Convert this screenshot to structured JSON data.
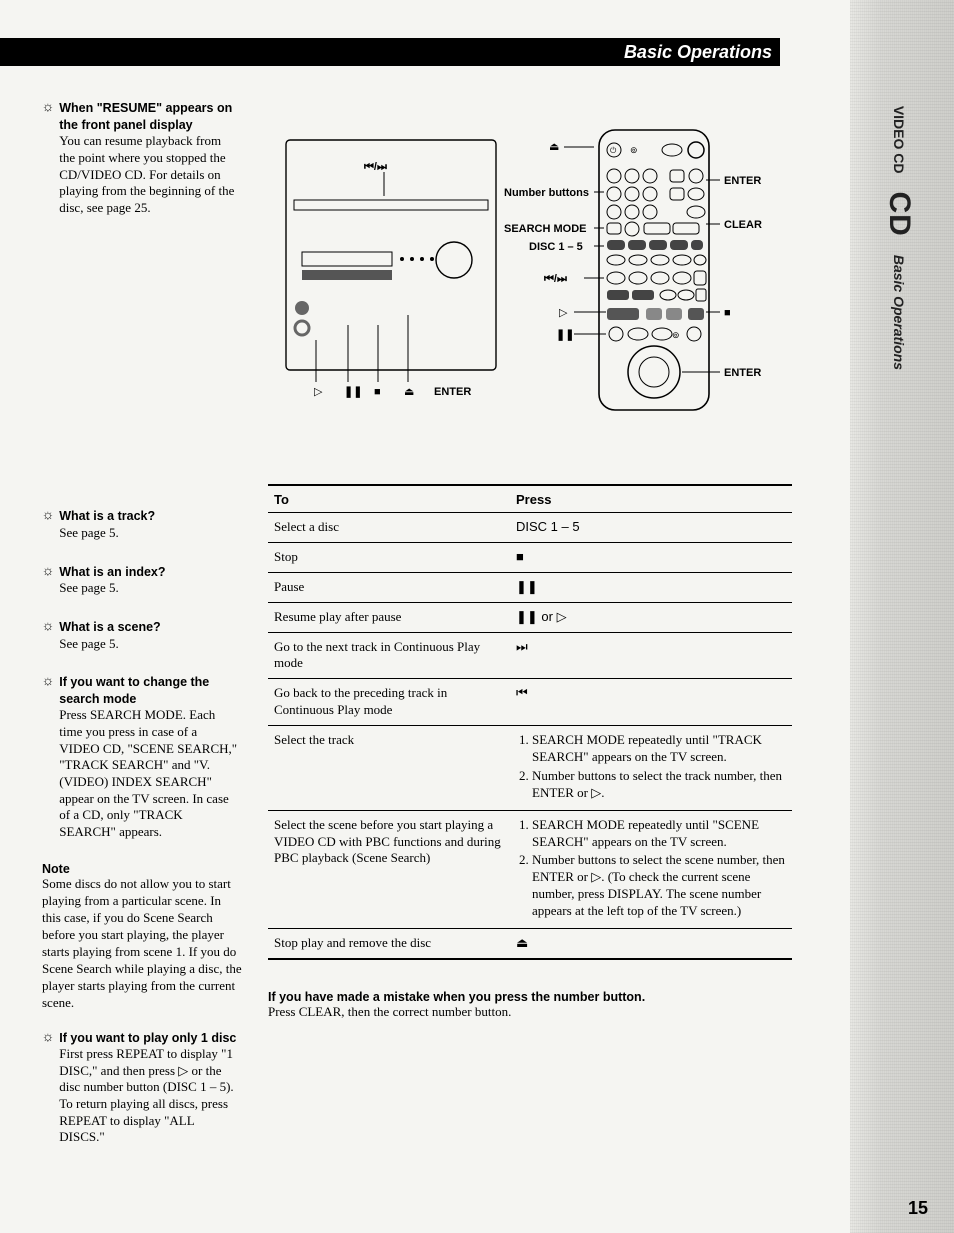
{
  "header": {
    "title": "Basic Operations"
  },
  "side": {
    "video": "VIDEO CD",
    "cd": "CD",
    "basic": "Basic Operations"
  },
  "tips": [
    {
      "title": "When \"RESUME\" appears on the front panel display",
      "body": "You can resume playback from the point where you stopped the CD/VIDEO CD. For details on playing from the beginning of the disc, see page 25."
    },
    {
      "title": "What is a track?",
      "body": "See page 5."
    },
    {
      "title": "What is an index?",
      "body": "See page 5."
    },
    {
      "title": "What is a scene?",
      "body": "See page 5."
    },
    {
      "title": "If you want to change the search mode",
      "body": "Press SEARCH MODE. Each time you press in case of a VIDEO CD, \"SCENE SEARCH,\" \"TRACK SEARCH\" and \"V. (VIDEO) INDEX SEARCH\" appear on the TV screen. In case of a CD, only \"TRACK SEARCH\" appears."
    }
  ],
  "note": {
    "title": "Note",
    "body": "Some discs do not allow you to start playing from a particular scene. In this case, if you do Scene Search before you start playing, the player starts playing from scene 1. If you do Scene Search while playing a disc, the player starts playing from the current scene."
  },
  "tip_play1": {
    "title": "If you want to play only 1 disc",
    "body": "First press REPEAT to display \"1 DISC,\" and then press ▷ or the disc number button (DISC 1 – 5). To return playing all discs, press REPEAT to display \"ALL DISCS.\""
  },
  "diagram": {
    "labels": {
      "number_buttons": "Number buttons",
      "search_mode": "SEARCH MODE",
      "disc15": "DISC 1 – 5",
      "prevnext": "⏮/⏭",
      "play": "▷",
      "pause": "❚❚",
      "enter": "ENTER",
      "clear": "CLEAR",
      "stop": "■",
      "eject": "⏏",
      "enter_front": "ENTER"
    }
  },
  "table": {
    "head_to": "To",
    "head_press": "Press",
    "rows": [
      {
        "to": "Select a disc",
        "press": "DISC 1 – 5"
      },
      {
        "to": "Stop",
        "press": "■"
      },
      {
        "to": "Pause",
        "press": "❚❚"
      },
      {
        "to": "Resume play after pause",
        "press": "❚❚ or ▷"
      },
      {
        "to": "Go to the next track in Continuous Play mode",
        "press": "⏭"
      },
      {
        "to": "Go back to the preceding track in Continuous Play mode",
        "press": "⏮"
      },
      {
        "to": "Select the track",
        "press_list": [
          "SEARCH MODE repeatedly until \"TRACK SEARCH\" appears on the TV screen.",
          "Number buttons to select the track number, then ENTER or ▷."
        ]
      },
      {
        "to": "Select the scene before you start playing a VIDEO CD with PBC functions and during PBC playback (Scene Search)",
        "press_list": [
          "SEARCH MODE repeatedly until \"SCENE SEARCH\" appears on the TV screen.",
          "Number buttons to select the scene number, then ENTER or ▷. (To check the current scene number, press DISPLAY. The scene number appears at the left top of the TV screen.)"
        ]
      },
      {
        "to": "Stop play and remove the disc",
        "press": "⏏"
      }
    ]
  },
  "mistake": {
    "head": "If you have made a mistake when you press the number button.",
    "body": "Press CLEAR, then the correct number button."
  },
  "page_number": "15"
}
